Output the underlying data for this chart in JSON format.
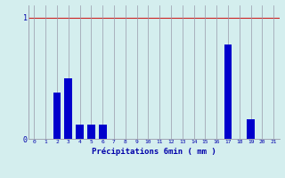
{
  "xlabel": "Précipitations 6min ( mm )",
  "categories": [
    0,
    1,
    2,
    3,
    4,
    5,
    6,
    7,
    8,
    9,
    10,
    11,
    12,
    13,
    14,
    15,
    16,
    17,
    18,
    19,
    20,
    21
  ],
  "values": [
    0,
    0,
    0.38,
    0.5,
    0.12,
    0.12,
    0.12,
    0,
    0,
    0,
    0,
    0,
    0,
    0,
    0,
    0,
    0,
    0.78,
    0,
    0.16,
    0,
    0
  ],
  "bar_color": "#0000cc",
  "background_color": "#d4eeee",
  "grid_color": "#9999aa",
  "text_color": "#0000aa",
  "red_line_color": "#cc2222",
  "ylim": [
    0,
    1.1
  ],
  "yticks": [
    0,
    1
  ],
  "xlim": [
    -0.5,
    21.5
  ]
}
